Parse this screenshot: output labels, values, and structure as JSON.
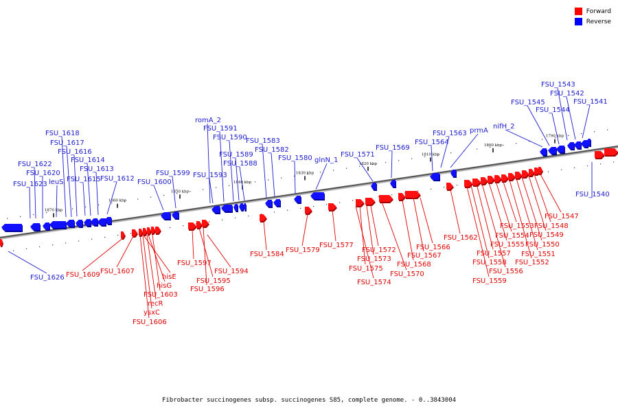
{
  "legend": {
    "forward_label": "Forward",
    "reverse_label": "Reverse",
    "forward_color": "#ff0000",
    "reverse_color": "#0000ff"
  },
  "caption": "Fibrobacter succinogenes subsp. succinogenes S85, complete genome. - 0..3843004",
  "ticks": [
    "1870 kbp",
    "1860 kbp",
    "1850 kbp",
    "1840 kbp",
    "1830 kbp",
    "1820 kbp",
    "1810 kbp",
    "1800 kbp",
    "1790 kbp"
  ],
  "reverse_genes": [
    "FSU_1623",
    "FSU_1622",
    "FSU_1620",
    "leuS",
    "FSU_1618",
    "FSU_1617",
    "FSU_1616",
    "FSU_1615",
    "FSU_1614",
    "FSU_1613",
    "FSU_1612",
    "FSU_1600",
    "FSU_1599",
    "FSU_1593",
    "romA_2",
    "FSU_1591",
    "FSU_1590",
    "FSU_1589",
    "FSU_1588",
    "FSU_1583",
    "FSU_1582",
    "FSU_1580",
    "glnN_1",
    "FSU_1571",
    "FSU_1569",
    "FSU_1564",
    "FSU_1563",
    "prmA",
    "nifH_2",
    "FSU_1545",
    "FSU_1544",
    "FSU_1543",
    "FSU_1542",
    "FSU_1541",
    "FSU_1626",
    "FSU_1540"
  ],
  "forward_genes": [
    "FSU_1609",
    "FSU_1607",
    "hisE",
    "hisG",
    "FSU_1603",
    "recR",
    "ysxC",
    "FSU_1606",
    "FSU_1597",
    "FSU_1595",
    "FSU_1596",
    "FSU_1594",
    "FSU_1584",
    "FSU_1579",
    "FSU_1577",
    "FSU_1572",
    "FSU_1573",
    "FSU_1575",
    "FSU_1574",
    "FSU_1570",
    "FSU_1568",
    "FSU_1567",
    "FSU_1566",
    "FSU_1562",
    "FSU_1559",
    "FSU_1558",
    "FSU_1557",
    "FSU_1556",
    "FSU_1555",
    "FSU_1554",
    "FSU_1553",
    "FSU_1552",
    "FSU_1551",
    "FSU_1550",
    "FSU_1549",
    "FSU_1548",
    "FSU_1547"
  ]
}
